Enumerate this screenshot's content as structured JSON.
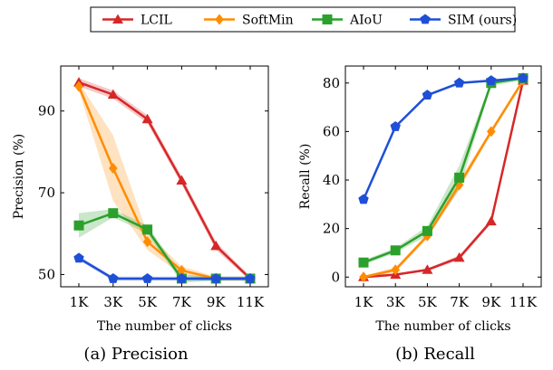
{
  "legend": {
    "placement": "top-center",
    "items": [
      {
        "name": "LCIL",
        "color": "#d62728",
        "marker": "triangle"
      },
      {
        "name": "SoftMin",
        "color": "#ff8c00",
        "marker": "diamond"
      },
      {
        "name": "AIoU",
        "color": "#2ca02c",
        "marker": "square"
      },
      {
        "name": "SIM (ours)",
        "color": "#1f4fd6",
        "marker": "pentagon"
      }
    ]
  },
  "chart_data": [
    {
      "type": "line",
      "caption": "(a) Precision",
      "xlabel": "The number of clicks",
      "ylabel": "Precision (%)",
      "categories": [
        "1K",
        "3K",
        "5K",
        "7K",
        "9K",
        "11K"
      ],
      "ylim": [
        47,
        101
      ],
      "yticks": [
        50,
        70,
        90
      ],
      "grid": false,
      "series": [
        {
          "name": "LCIL",
          "values": [
            97,
            94,
            88,
            73,
            57,
            49
          ],
          "band": [
            1,
            1,
            1,
            1,
            1,
            0.5
          ]
        },
        {
          "name": "SoftMin",
          "values": [
            96,
            76,
            58,
            51,
            49,
            49
          ],
          "band": [
            1,
            8,
            2,
            1,
            0.5,
            0.5
          ]
        },
        {
          "name": "AIoU",
          "values": [
            62,
            65,
            61,
            49,
            49,
            49
          ],
          "band": [
            3,
            1,
            1,
            1,
            0.5,
            0.5
          ]
        },
        {
          "name": "SIM (ours)",
          "values": [
            54,
            49,
            49,
            49,
            49,
            49
          ],
          "band": [
            0.5,
            0.5,
            0.5,
            0.5,
            0.5,
            0.5
          ]
        }
      ]
    },
    {
      "type": "line",
      "caption": "(b) Recall",
      "xlabel": "The number of clicks",
      "ylabel": "Recall (%)",
      "categories": [
        "1K",
        "3K",
        "5K",
        "7K",
        "9K",
        "11K"
      ],
      "ylim": [
        -4,
        87
      ],
      "yticks": [
        0,
        20,
        40,
        60,
        80
      ],
      "grid": false,
      "series": [
        {
          "name": "LCIL",
          "values": [
            0,
            1,
            3,
            8,
            23,
            81
          ],
          "band": [
            0.5,
            0.5,
            0.5,
            1,
            1,
            1
          ]
        },
        {
          "name": "SoftMin",
          "values": [
            0,
            3,
            17,
            38,
            60,
            81
          ],
          "band": [
            0.5,
            1,
            1,
            2,
            1,
            1
          ]
        },
        {
          "name": "AIoU",
          "values": [
            6,
            11,
            19,
            41,
            80,
            82
          ],
          "band": [
            1,
            1,
            2,
            5,
            1,
            1
          ]
        },
        {
          "name": "SIM (ours)",
          "values": [
            32,
            62,
            75,
            80,
            81,
            82
          ],
          "band": [
            0.5,
            0.5,
            0.5,
            0.5,
            0.5,
            0.5
          ]
        }
      ]
    }
  ]
}
